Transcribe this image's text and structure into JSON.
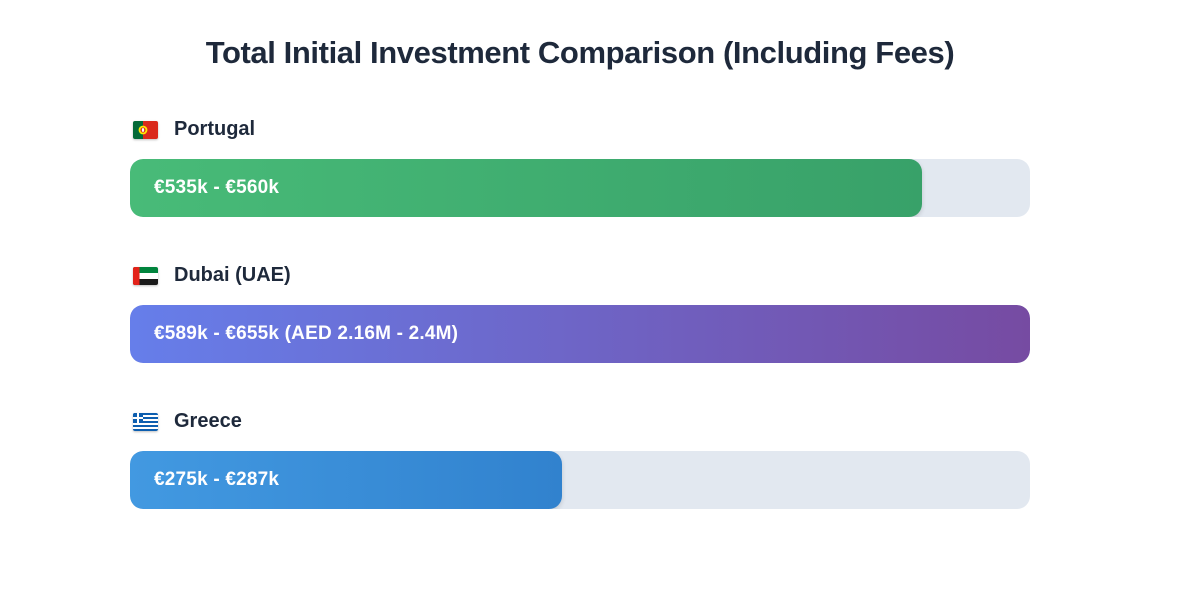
{
  "title": "Total Initial Investment Comparison (Including Fees)",
  "chart_data": {
    "type": "bar",
    "orientation": "horizontal",
    "title": "Total Initial Investment Comparison (Including Fees)",
    "track_color": "#e2e8f0",
    "categories": [
      "Portugal",
      "Dubai (UAE)",
      "Greece"
    ],
    "items": [
      {
        "label": "Portugal",
        "flag": "portugal-flag",
        "value_label": "€535k - €560k",
        "min_eur_k": 535,
        "max_eur_k": 560,
        "fill_percent": 88,
        "gradient_start": "#48bb78",
        "gradient_end": "#38a169"
      },
      {
        "label": "Dubai (UAE)",
        "flag": "uae-flag",
        "value_label": "€589k - €655k (AED 2.16M - 2.4M)",
        "min_eur_k": 589,
        "max_eur_k": 655,
        "aed_range": "AED 2.16M - 2.4M",
        "fill_percent": 100,
        "gradient_start": "#667eea",
        "gradient_end": "#764ba2"
      },
      {
        "label": "Greece",
        "flag": "greece-flag",
        "value_label": "€275k - €287k",
        "min_eur_k": 275,
        "max_eur_k": 287,
        "fill_percent": 48,
        "gradient_start": "#4299e1",
        "gradient_end": "#3182ce"
      }
    ]
  }
}
